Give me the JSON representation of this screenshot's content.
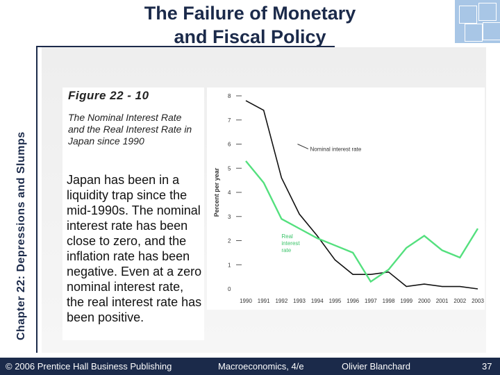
{
  "slide": {
    "title": "The Failure of Monetary\nand Fiscal Policy",
    "sidebar_label": "Chapter 22: Depressions and Slumps",
    "figure_title": "Figure 22 - 10",
    "figure_desc": "The Nominal Interest Rate and the Real Interest Rate in Japan since 1990",
    "body": "Japan has been in a liquidity trap since the mid-1990s.  The nominal interest rate has been close to zero, and the inflation rate has been negative. Even at a zero nominal interest rate, the real interest rate has been positive."
  },
  "footer": {
    "copyright": "© 2006 Prentice Hall Business Publishing",
    "book": "Macroeconomics, 4/e",
    "author": "Olivier Blanchard",
    "page": "37"
  },
  "colors": {
    "navy": "#1b2a4a",
    "nominal": "#111111",
    "real": "#54e07e",
    "logo": "#a8c6e6"
  },
  "chart_data": {
    "type": "line",
    "ylabel": "Percent per year",
    "ylim": [
      0,
      8
    ],
    "y_ticks": [
      "0",
      "1",
      "2",
      "3",
      "4",
      "5",
      "6",
      "7",
      "8"
    ],
    "x_ticks": [
      "1990",
      "1991",
      "1992",
      "1993",
      "1994",
      "1995",
      "1996",
      "1997",
      "1998",
      "1999",
      "2000",
      "2001",
      "2002",
      "2003"
    ],
    "x": [
      1990,
      1991,
      1992,
      1993,
      1994,
      1995,
      1996,
      1997,
      1998,
      1999,
      2000,
      2001,
      2002,
      2003
    ],
    "series": [
      {
        "name": "Nominal interest rate",
        "values": [
          7.8,
          7.4,
          4.6,
          3.1,
          2.2,
          1.2,
          0.6,
          0.6,
          0.7,
          0.1,
          0.2,
          0.1,
          0.1,
          0.0
        ]
      },
      {
        "name": "Real interest rate",
        "values": [
          5.3,
          4.4,
          2.9,
          2.5,
          2.1,
          1.8,
          1.5,
          0.3,
          0.8,
          1.7,
          2.2,
          1.6,
          1.3,
          2.5
        ]
      }
    ],
    "annotations": [
      "Nominal interest rate",
      "Real interest rate"
    ]
  }
}
